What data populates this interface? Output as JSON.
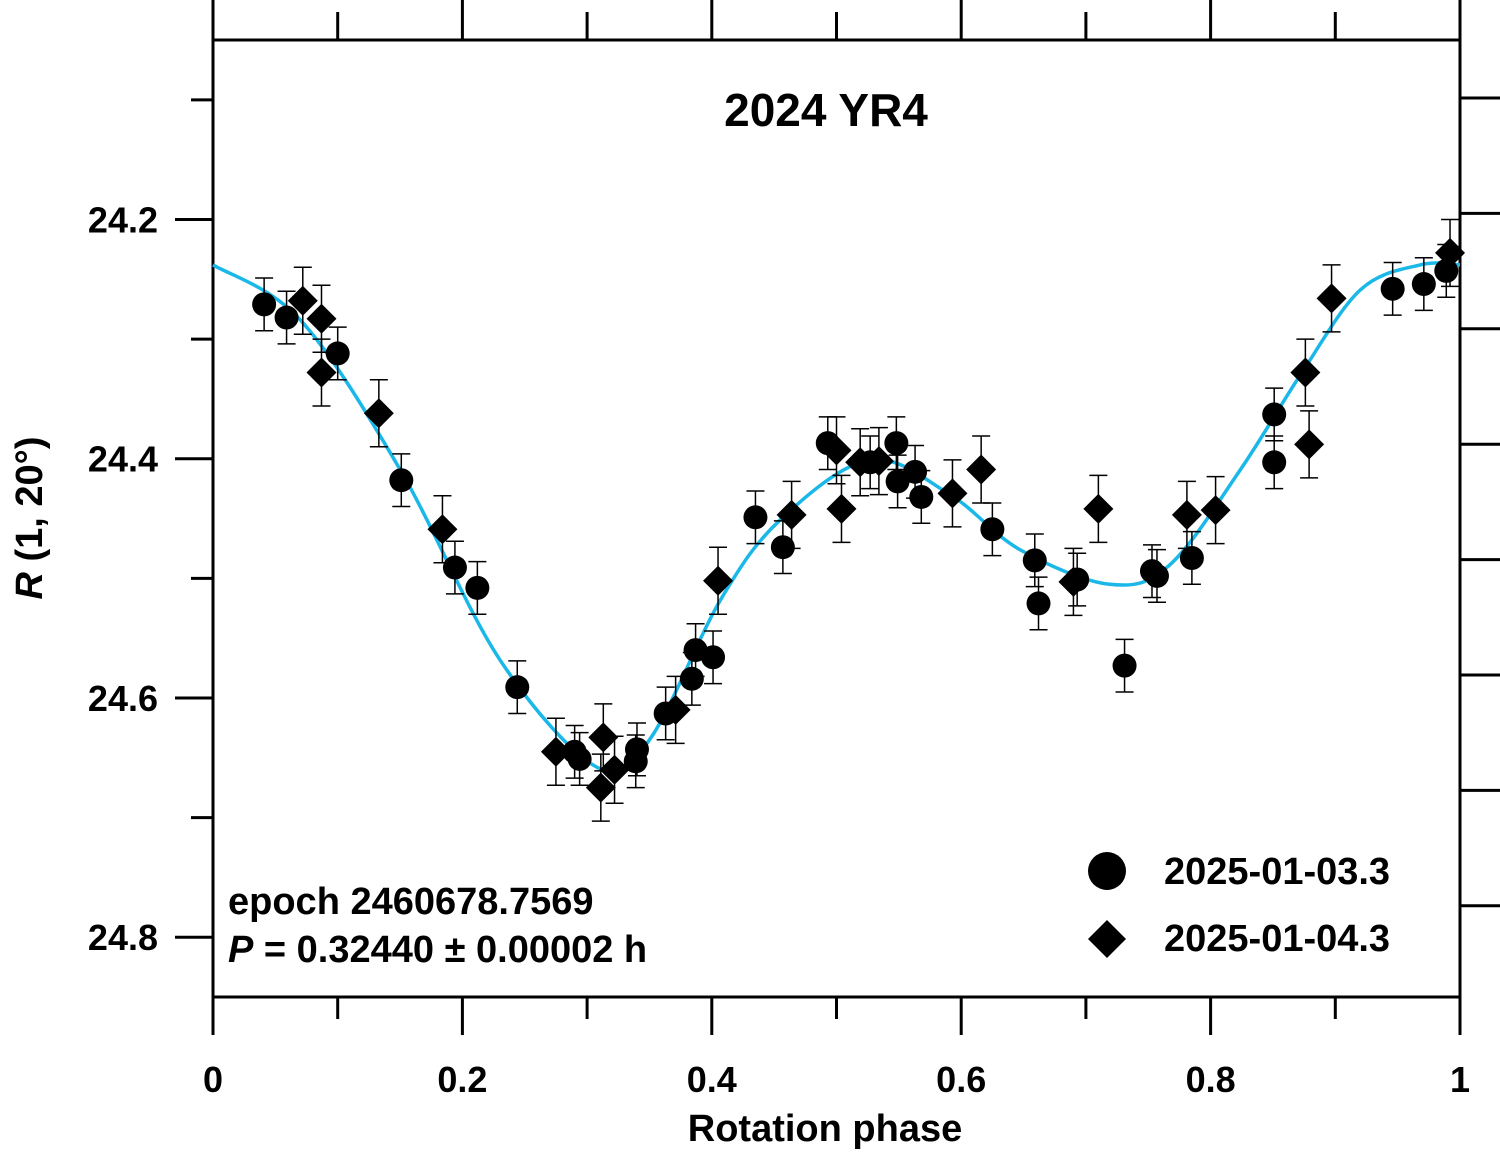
{
  "chart_data": {
    "type": "scatter",
    "title": "2024 YR4",
    "xlabel": "Rotation phase",
    "ylabel_italic": "R",
    "ylabel_rest": " (1, 20°)",
    "xlim": [
      0,
      1
    ],
    "ylim": [
      24.05,
      24.85
    ],
    "y_inverted": true,
    "x_ticks": [
      0,
      0.2,
      0.4,
      0.6,
      0.8,
      1
    ],
    "x_tick_labels": [
      "0",
      "0.2",
      "0.4",
      "0.6",
      "0.8",
      "1"
    ],
    "y_ticks": [
      24.2,
      24.4,
      24.6,
      24.8
    ],
    "y_tick_labels": [
      "24.2",
      "24.4",
      "24.6",
      "24.8"
    ],
    "annotation_epoch": "epoch 2460678.7569",
    "annotation_period_symbol": "P",
    "annotation_period_rest": " = 0.32440 ± 0.00002 h",
    "legend_placement": "bottom-right",
    "series": [
      {
        "name": "2025-01-03.3",
        "marker": "circle",
        "error": 0.022,
        "x": [
          0.041,
          0.059,
          0.1,
          0.151,
          0.194,
          0.212,
          0.244,
          0.29,
          0.294,
          0.34,
          0.339,
          0.363,
          0.384,
          0.387,
          0.401,
          0.435,
          0.457,
          0.493,
          0.527,
          0.548,
          0.549,
          0.563,
          0.568,
          0.625,
          0.659,
          0.662,
          0.693,
          0.731,
          0.753,
          0.757,
          0.785,
          0.851,
          0.851,
          0.946,
          0.971,
          0.989
        ],
        "y": [
          24.271,
          24.282,
          24.312,
          24.418,
          24.491,
          24.508,
          24.591,
          24.645,
          24.651,
          24.643,
          24.653,
          24.613,
          24.584,
          24.56,
          24.566,
          24.449,
          24.474,
          24.387,
          24.403,
          24.387,
          24.419,
          24.411,
          24.432,
          24.459,
          24.485,
          24.521,
          24.501,
          24.573,
          24.494,
          24.498,
          24.483,
          24.363,
          24.403,
          24.258,
          24.254,
          24.243
        ]
      },
      {
        "name": "2025-01-04.3",
        "marker": "diamond",
        "error": 0.028,
        "x": [
          0.072,
          0.087,
          0.087,
          0.133,
          0.184,
          0.275,
          0.313,
          0.311,
          0.322,
          0.371,
          0.405,
          0.464,
          0.5,
          0.504,
          0.519,
          0.534,
          0.593,
          0.616,
          0.69,
          0.71,
          0.781,
          0.804,
          0.876,
          0.879,
          0.897,
          0.992
        ],
        "y": [
          24.268,
          24.283,
          24.328,
          24.362,
          24.459,
          24.645,
          24.633,
          24.675,
          24.66,
          24.61,
          24.502,
          24.447,
          24.393,
          24.442,
          24.403,
          24.402,
          24.429,
          24.409,
          24.503,
          24.442,
          24.447,
          24.443,
          24.328,
          24.388,
          24.266,
          24.228
        ]
      }
    ],
    "fit_curve": {
      "color": "#1ab8e8",
      "x": [
        0,
        0.07,
        0.15,
        0.23,
        0.308,
        0.35,
        0.407,
        0.455,
        0.527,
        0.591,
        0.647,
        0.719,
        0.767,
        0.824,
        0.872,
        0.92,
        0.968,
        1
      ],
      "y": [
        24.238,
        24.284,
        24.409,
        24.568,
        24.658,
        24.635,
        24.518,
        24.451,
        24.401,
        24.43,
        24.476,
        24.505,
        24.489,
        24.409,
        24.33,
        24.259,
        24.238,
        24.238
      ]
    }
  }
}
